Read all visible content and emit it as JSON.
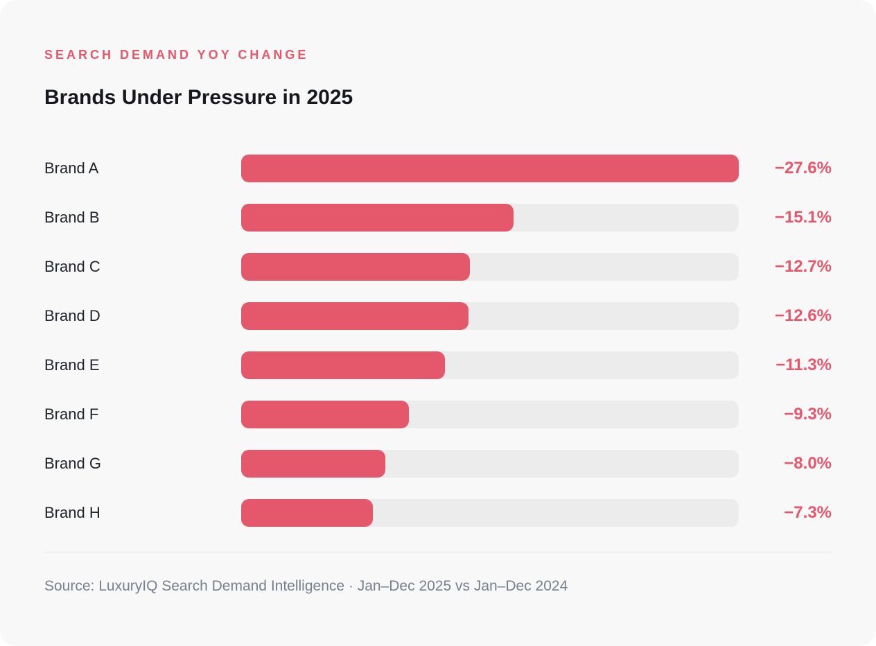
{
  "theme": {
    "accent": "#e5586c",
    "track_color": "#ececec",
    "card_background": "#f8f8f8",
    "title_color": "#16181d",
    "label_color": "#20242b",
    "muted_color": "#76808f"
  },
  "header": {
    "kicker": "SEARCH DEMAND YOY CHANGE",
    "title": "Brands Under Pressure in 2025"
  },
  "chart_data": {
    "type": "bar",
    "orientation": "horizontal",
    "title": "Brands Under Pressure in 2025",
    "subtitle": "SEARCH DEMAND YOY CHANGE",
    "categories": [
      "Brand A",
      "Brand B",
      "Brand C",
      "Brand D",
      "Brand E",
      "Brand F",
      "Brand G",
      "Brand H"
    ],
    "values": [
      -27.6,
      -15.1,
      -12.7,
      -12.6,
      -11.3,
      -9.3,
      -8.0,
      -7.3
    ],
    "value_labels": [
      "−27.6%",
      "−15.1%",
      "−12.7%",
      "−12.6%",
      "−11.3%",
      "−9.3%",
      "−8.0%",
      "−7.3%"
    ],
    "unit": "%",
    "xlim": [
      0,
      27.6
    ],
    "grid": false,
    "legend": false,
    "bar_color": "#e5586c",
    "track_color": "#ececec",
    "value_label_position": "right"
  },
  "footer": {
    "source": "Source: LuxuryIQ Search Demand Intelligence · Jan–Dec 2025 vs Jan–Dec 2024"
  }
}
